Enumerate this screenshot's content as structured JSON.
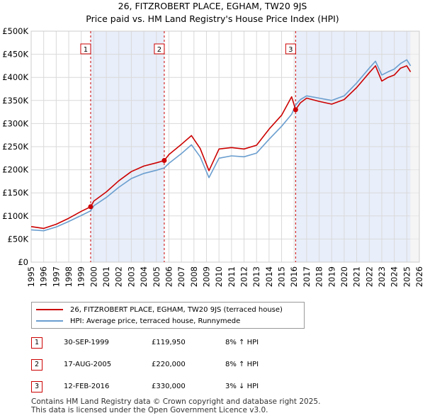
{
  "chart_data": {
    "type": "line",
    "title": "26, FITZROBERT PLACE, EGHAM, TW20 9JS",
    "subtitle": "Price paid vs. HM Land Registry's House Price Index (HPI)",
    "x_range": [
      1995,
      2026
    ],
    "ylim": [
      0,
      500000
    ],
    "y_ticks": [
      "£0",
      "£50K",
      "£100K",
      "£150K",
      "£200K",
      "£250K",
      "£300K",
      "£350K",
      "£400K",
      "£450K",
      "£500K"
    ],
    "x_ticks": [
      "1995",
      "1996",
      "1997",
      "1998",
      "1999",
      "2000",
      "2001",
      "2002",
      "2003",
      "2004",
      "2005",
      "2006",
      "2007",
      "2008",
      "2009",
      "2010",
      "2011",
      "2012",
      "2013",
      "2014",
      "2015",
      "2016",
      "2017",
      "2018",
      "2019",
      "2020",
      "2021",
      "2022",
      "2023",
      "2024",
      "2025",
      "2026"
    ],
    "grid": true,
    "forecast_start": 2025.25,
    "series": [
      {
        "name": "26, FITZROBERT PLACE, EGHAM, TW20 9JS (terraced house)",
        "color": "#cc0000",
        "x": [
          1995,
          1996,
          1997,
          1998,
          1999,
          1999.75,
          2000,
          2001,
          2002,
          2003,
          2004,
          2005,
          2005.63,
          2006,
          2007,
          2007.8,
          2008.5,
          2009.2,
          2010,
          2011,
          2012,
          2013,
          2014,
          2015,
          2015.8,
          2016.12,
          2016.5,
          2017,
          2018,
          2019,
          2020,
          2021,
          2022,
          2022.5,
          2023,
          2023.5,
          2024,
          2024.5,
          2025,
          2025.3
        ],
        "values": [
          77000,
          73000,
          82000,
          95000,
          110000,
          119950,
          132000,
          152000,
          176000,
          196000,
          208000,
          215000,
          220000,
          233000,
          255000,
          274000,
          246000,
          198000,
          245000,
          248000,
          245000,
          253000,
          288000,
          318000,
          358000,
          330000,
          345000,
          355000,
          348000,
          342000,
          352000,
          378000,
          410000,
          425000,
          392000,
          400000,
          405000,
          420000,
          425000,
          412000
        ]
      },
      {
        "name": "HPI: Average price, terraced house, Runnymede",
        "color": "#6a9ecf",
        "x": [
          1995,
          1996,
          1997,
          1998,
          1999,
          1999.75,
          2000,
          2001,
          2002,
          2003,
          2004,
          2005,
          2005.63,
          2006,
          2007,
          2007.8,
          2008.5,
          2009.2,
          2010,
          2011,
          2012,
          2013,
          2014,
          2015,
          2015.8,
          2016.12,
          2016.5,
          2017,
          2018,
          2019,
          2020,
          2021,
          2022,
          2022.5,
          2023,
          2023.5,
          2024,
          2024.5,
          2025,
          2025.3
        ],
        "values": [
          70000,
          68000,
          76000,
          88000,
          101000,
          111000,
          122000,
          140000,
          162000,
          181000,
          192000,
          199000,
          204000,
          214000,
          235000,
          254000,
          228000,
          183000,
          225000,
          230000,
          228000,
          236000,
          266000,
          294000,
          320000,
          340000,
          352000,
          360000,
          355000,
          350000,
          360000,
          388000,
          420000,
          435000,
          405000,
          412000,
          418000,
          430000,
          438000,
          425000
        ]
      }
    ],
    "sales": [
      {
        "label": "1",
        "x": 1999.75,
        "value": 119950
      },
      {
        "label": "2",
        "x": 2005.63,
        "value": 220000
      },
      {
        "label": "3",
        "x": 2016.12,
        "value": 330000
      }
    ],
    "shaded_ranges": [
      [
        1999.75,
        2005.63
      ],
      [
        2016.12,
        2025.3
      ]
    ]
  },
  "legend": {
    "property": "26, FITZROBERT PLACE, EGHAM, TW20 9JS (terraced house)",
    "hpi": "HPI: Average price, terraced house, Runnymede"
  },
  "transactions": [
    {
      "num": "1",
      "date": "30-SEP-1999",
      "price": "£119,950",
      "hpi": "8% ↑ HPI"
    },
    {
      "num": "2",
      "date": "17-AUG-2005",
      "price": "£220,000",
      "hpi": "8% ↑ HPI"
    },
    {
      "num": "3",
      "date": "12-FEB-2016",
      "price": "£330,000",
      "hpi": "3% ↓ HPI"
    }
  ],
  "footer": {
    "line1": "Contains HM Land Registry data © Crown copyright and database right 2025.",
    "line2": "This data is licensed under the Open Government Licence v3.0."
  },
  "colors": {
    "property": "#cc0000",
    "hpi": "#6a9ecf",
    "shade": "#e8eefa"
  }
}
